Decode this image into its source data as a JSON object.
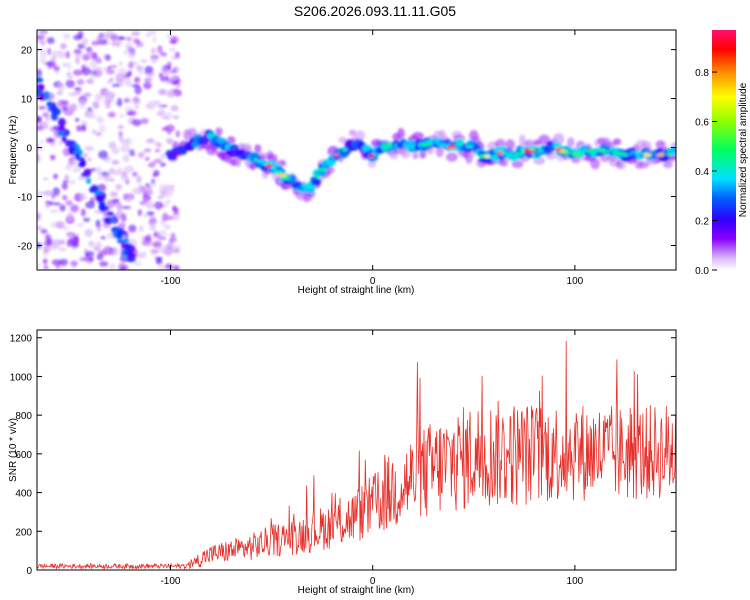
{
  "title": "S206.2026.093.11.11.G05",
  "charts": [
    {
      "type": "heatmap",
      "xlabel": "Height of straight line (km)",
      "ylabel": "Frequency (Hz)",
      "xlim": [
        -166,
        150
      ],
      "ylim": [
        -25,
        24
      ],
      "x_ticks": [
        -100,
        0,
        100
      ],
      "y_ticks": [
        -20,
        -10,
        0,
        10,
        20
      ],
      "colorbar": {
        "label": "Normalized spectral amplitude",
        "range": [
          0,
          0.97
        ],
        "ticks": [
          "0.0",
          "0.2",
          "0.4",
          "0.6",
          "0.8"
        ]
      },
      "ridge_curve": {
        "x": [
          -100,
          -95,
          -88,
          -82,
          -75,
          -70,
          -65,
          -60,
          -55,
          -50,
          -45,
          -40,
          -35,
          -32,
          -28,
          -24,
          -20,
          -16,
          -12,
          -8,
          -4,
          0,
          5,
          10,
          15,
          20,
          25,
          30,
          35,
          40,
          45,
          50,
          55,
          60,
          65,
          70,
          75,
          80,
          85,
          90,
          95,
          100,
          105,
          110,
          115,
          120,
          125,
          130,
          135,
          140,
          145,
          150
        ],
        "y": [
          -1.5,
          -0.5,
          1.0,
          2.5,
          1.0,
          -0.5,
          -1.5,
          -2.0,
          -3.0,
          -4.0,
          -5.5,
          -7.0,
          -8.0,
          -8.5,
          -6.5,
          -4.0,
          -2.0,
          -1.0,
          0.0,
          1.0,
          0.0,
          -2.0,
          0.0,
          0.5,
          0.5,
          0.2,
          0.5,
          1.0,
          0.5,
          0.0,
          0.5,
          0.0,
          -2.0,
          -1.5,
          -1.0,
          -2.0,
          -0.5,
          -1.0,
          -0.5,
          0.0,
          -1.0,
          -1.5,
          -0.5,
          -1.0,
          -0.5,
          -1.0,
          -1.5,
          -1.0,
          -1.5,
          -1.5,
          -1.5,
          -1.0
        ]
      }
    },
    {
      "type": "line",
      "xlabel": "Height of straight line (km)",
      "ylabel": "SNR (10 * v/v)",
      "xlim": [
        -166,
        150
      ],
      "ylim": [
        0,
        1240
      ],
      "x_ticks": [
        -100,
        0,
        100
      ],
      "y_ticks": [
        0,
        200,
        400,
        600,
        800,
        1000,
        1200
      ],
      "series_color": "#e8302a",
      "envelope": {
        "x": [
          -166,
          -95,
          -90,
          -85,
          -80,
          -70,
          -60,
          -50,
          -40,
          -30,
          -20,
          -10,
          0,
          10,
          20,
          30,
          40,
          50,
          60,
          70,
          80,
          90,
          100,
          110,
          120,
          130,
          140,
          150
        ],
        "baseline": [
          20,
          20,
          25,
          60,
          80,
          100,
          120,
          150,
          170,
          200,
          230,
          270,
          330,
          410,
          470,
          520,
          560,
          590,
          600,
          600,
          600,
          610,
          610,
          610,
          600,
          600,
          610,
          620
        ],
        "spread": [
          25,
          25,
          40,
          90,
          100,
          120,
          140,
          170,
          190,
          220,
          240,
          280,
          330,
          420,
          480,
          520,
          540,
          560,
          560,
          560,
          540,
          530,
          520,
          510,
          500,
          500,
          500,
          520
        ]
      }
    }
  ]
}
